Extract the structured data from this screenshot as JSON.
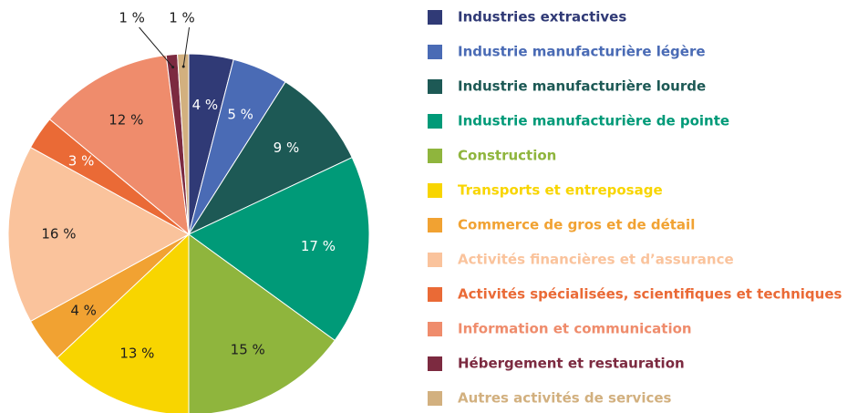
{
  "chart_data": {
    "type": "pie",
    "categories": [
      "Industries extractives",
      "Industrie manufacturière légère",
      "Industrie manufacturière lourde",
      "Industrie manufacturière de pointe",
      "Construction",
      "Transports et entreposage",
      "Commerce de gros et de détail",
      "Activités financières et d’assurance",
      "Activités spécialisées, scientifiques et techniques",
      "Information et communication",
      "Hébergement et restauration",
      "Autres activités de services"
    ],
    "values": [
      4,
      5,
      9,
      17,
      15,
      13,
      4,
      16,
      3,
      12,
      1,
      1
    ],
    "value_labels": [
      "4 %",
      "5 %",
      "9 %",
      "17 %",
      "15 %",
      "13 %",
      "4 %",
      "16 %",
      "3 %",
      "12 %",
      "1 %",
      "1 %"
    ],
    "colors": [
      "#303a76",
      "#4a6bb5",
      "#1d5955",
      "#009a78",
      "#8fb53d",
      "#f8d500",
      "#f1a232",
      "#fac39c",
      "#ea6a36",
      "#ef8c6c",
      "#7c2a40",
      "#d2b07f"
    ]
  }
}
